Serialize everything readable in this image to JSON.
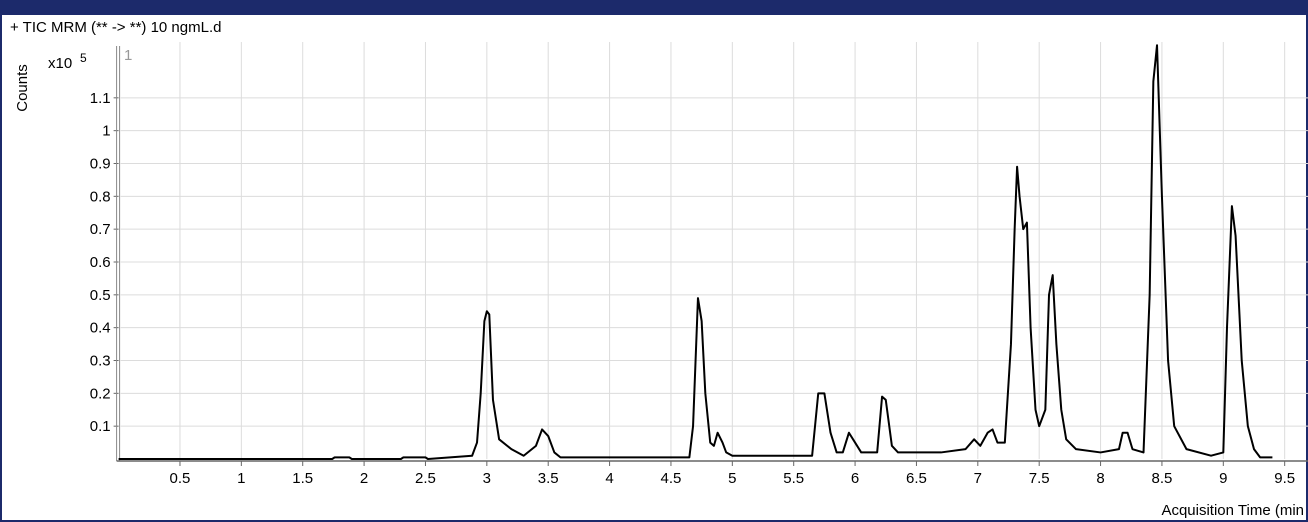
{
  "chart_data": {
    "type": "line",
    "title": "+ TIC MRM (** -> **) 10 ngmL.d",
    "y_axis_label": "Counts",
    "y_multiplier": "x10",
    "y_exponent": "5",
    "pane_label": "1",
    "x_axis_label": "Acquisition Time (min",
    "xlim": [
      0,
      9.69
    ],
    "ylim": [
      0,
      1.27
    ],
    "xticks": [
      0.5,
      1,
      1.5,
      2,
      2.5,
      3,
      3.5,
      4,
      4.5,
      5,
      5.5,
      6,
      6.5,
      7,
      7.5,
      8,
      8.5,
      9,
      9.5
    ],
    "yticks": [
      0.1,
      0.2,
      0.3,
      0.4,
      0.5,
      0.6,
      0.7,
      0.8,
      0.9,
      1,
      1.1
    ],
    "grid": true,
    "x": [
      0,
      1.74,
      1.76,
      1.88,
      1.9,
      2.3,
      2.32,
      2.5,
      2.52,
      2.88,
      2.92,
      2.95,
      2.98,
      3.0,
      3.02,
      3.05,
      3.1,
      3.2,
      3.3,
      3.4,
      3.45,
      3.5,
      3.55,
      3.6,
      4.65,
      4.68,
      4.72,
      4.75,
      4.78,
      4.82,
      4.85,
      4.88,
      4.92,
      4.95,
      5.0,
      5.65,
      5.7,
      5.75,
      5.8,
      5.85,
      5.9,
      5.95,
      6.0,
      6.05,
      6.18,
      6.22,
      6.25,
      6.3,
      6.35,
      6.5,
      6.7,
      6.9,
      6.97,
      7.02,
      7.08,
      7.12,
      7.16,
      7.22,
      7.27,
      7.3,
      7.32,
      7.34,
      7.37,
      7.4,
      7.43,
      7.47,
      7.5,
      7.55,
      7.58,
      7.61,
      7.64,
      7.68,
      7.72,
      7.8,
      8.0,
      8.15,
      8.18,
      8.22,
      8.26,
      8.35,
      8.4,
      8.43,
      8.46,
      8.5,
      8.55,
      8.6,
      8.7,
      8.9,
      9.0,
      9.03,
      9.07,
      9.1,
      9.15,
      9.2,
      9.25,
      9.3,
      9.4
    ],
    "series": [
      {
        "name": "TIC",
        "color": "#000000",
        "values": [
          0,
          0,
          0.005,
          0.005,
          0,
          0,
          0.005,
          0.005,
          0,
          0.01,
          0.05,
          0.2,
          0.42,
          0.45,
          0.44,
          0.18,
          0.06,
          0.03,
          0.01,
          0.04,
          0.09,
          0.07,
          0.02,
          0.005,
          0.005,
          0.1,
          0.49,
          0.42,
          0.2,
          0.05,
          0.04,
          0.08,
          0.05,
          0.02,
          0.01,
          0.01,
          0.2,
          0.2,
          0.08,
          0.02,
          0.02,
          0.08,
          0.05,
          0.02,
          0.02,
          0.19,
          0.18,
          0.04,
          0.02,
          0.02,
          0.02,
          0.03,
          0.06,
          0.04,
          0.08,
          0.09,
          0.05,
          0.05,
          0.35,
          0.7,
          0.89,
          0.8,
          0.7,
          0.72,
          0.4,
          0.15,
          0.1,
          0.15,
          0.5,
          0.56,
          0.35,
          0.15,
          0.06,
          0.03,
          0.02,
          0.03,
          0.08,
          0.08,
          0.03,
          0.02,
          0.5,
          1.15,
          1.26,
          0.8,
          0.3,
          0.1,
          0.03,
          0.01,
          0.02,
          0.4,
          0.77,
          0.68,
          0.3,
          0.1,
          0.03,
          0.005,
          0.005
        ]
      }
    ]
  }
}
